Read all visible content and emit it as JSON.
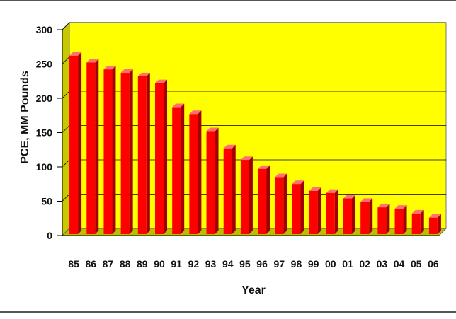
{
  "chart_data": {
    "type": "bar",
    "title": "",
    "xlabel": "Year",
    "ylabel": "PCE, MM Pounds",
    "ylim": [
      0,
      300
    ],
    "yticks": [
      "0",
      "50",
      "100",
      "150",
      "200",
      "250",
      "300"
    ],
    "grid": true,
    "categories": [
      "85",
      "86",
      "87",
      "88",
      "89",
      "90",
      "91",
      "92",
      "93",
      "94",
      "95",
      "96",
      "97",
      "98",
      "99",
      "00",
      "01",
      "02",
      "03",
      "04",
      "05",
      "06"
    ],
    "values": [
      260,
      250,
      240,
      235,
      230,
      220,
      185,
      175,
      150,
      125,
      108,
      95,
      83,
      73,
      63,
      60,
      52,
      47,
      39,
      37,
      30,
      24
    ],
    "colors": {
      "plot_background": "#ffff00",
      "bar": "#ff0000",
      "bar_shade": "#a00000",
      "bar_top": "#ff7070",
      "gridline": "#000000"
    }
  }
}
